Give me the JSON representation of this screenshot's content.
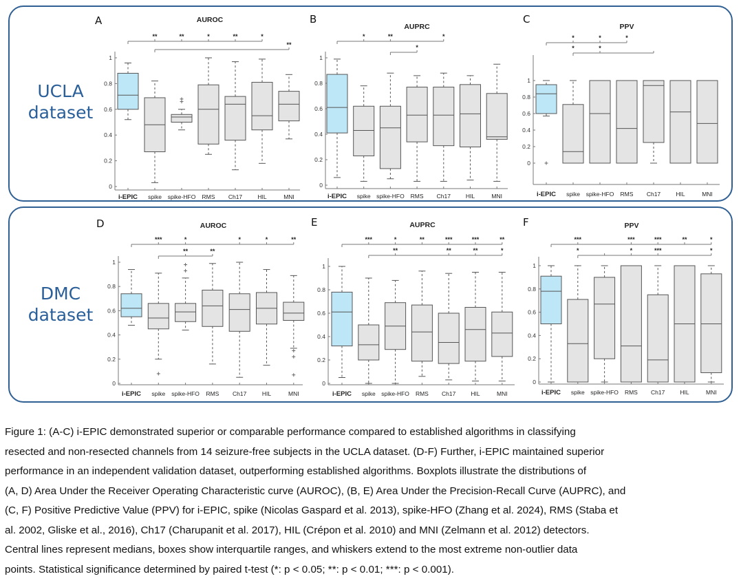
{
  "datasets": {
    "top_label": "UCLA dataset",
    "top_label_lines": [
      "UCLA",
      "dataset"
    ],
    "bottom_label": "DMC dataset",
    "bottom_label_lines": [
      "DMC",
      "dataset"
    ]
  },
  "colors": {
    "frame": "#2f5f93",
    "dataset_label": "#2a5f99",
    "iepic_box": "#bde6f7",
    "other_box": "#e4e4e4",
    "box_edge": "#555555"
  },
  "chart_data": [
    {
      "panel": "A",
      "type": "box",
      "dataset": "UCLA",
      "title": "AUROC",
      "categories": [
        "i-EPIC",
        "spike",
        "spike-HFO",
        "RMS",
        "Ch17",
        "HIL",
        "MNI"
      ],
      "yticks": [
        0,
        0.2,
        0.4,
        0.6,
        0.8,
        1
      ],
      "ytick_labels": [
        "0",
        "0.2",
        "0.4",
        "0.6",
        "0.8",
        "1"
      ],
      "ylim": [
        -0.02,
        1.08
      ],
      "boxes": [
        {
          "q1": 0.6,
          "median": 0.71,
          "q3": 0.88,
          "wlo": 0.52,
          "whi": 0.96,
          "outliers": []
        },
        {
          "q1": 0.27,
          "median": 0.48,
          "q3": 0.69,
          "wlo": 0.03,
          "whi": 0.82,
          "outliers": []
        },
        {
          "q1": 0.5,
          "median": 0.54,
          "q3": 0.56,
          "wlo": 0.44,
          "whi": 0.6,
          "outliers": [
            0.66,
            0.68
          ]
        },
        {
          "q1": 0.33,
          "median": 0.6,
          "q3": 0.79,
          "wlo": 0.25,
          "whi": 1.0,
          "outliers": []
        },
        {
          "q1": 0.36,
          "median": 0.64,
          "q3": 0.7,
          "wlo": 0.13,
          "whi": 0.97,
          "outliers": []
        },
        {
          "q1": 0.44,
          "median": 0.55,
          "q3": 0.81,
          "wlo": 0.18,
          "whi": 0.99,
          "outliers": []
        },
        {
          "q1": 0.51,
          "median": 0.64,
          "q3": 0.74,
          "wlo": 0.37,
          "whi": 0.87,
          "outliers": []
        }
      ],
      "significance": [
        {
          "from": "i-EPIC",
          "marks": [
            {
              "to": "spike",
              "stars": "**"
            },
            {
              "to": "spike-HFO",
              "stars": "**"
            },
            {
              "to": "RMS",
              "stars": "*"
            },
            {
              "to": "Ch17",
              "stars": "**"
            },
            {
              "to": "HIL",
              "stars": "*"
            }
          ]
        },
        {
          "from": "spike",
          "marks": [
            {
              "to": "MNI",
              "stars": "**"
            }
          ]
        }
      ]
    },
    {
      "panel": "B",
      "type": "box",
      "dataset": "UCLA",
      "title": "AUPRC",
      "categories": [
        "i-EPIC",
        "spike",
        "spike-HFO",
        "RMS",
        "Ch17",
        "HIL",
        "MNI"
      ],
      "yticks": [
        0,
        0.2,
        0.4,
        0.6,
        0.8,
        1
      ],
      "ytick_labels": [
        "0",
        "0.2",
        "0.4",
        "0.6",
        "0.8",
        "1"
      ],
      "ylim": [
        -0.02,
        1.08
      ],
      "boxes": [
        {
          "q1": 0.41,
          "median": 0.61,
          "q3": 0.87,
          "wlo": 0.06,
          "whi": 0.99,
          "outliers": []
        },
        {
          "q1": 0.23,
          "median": 0.43,
          "q3": 0.62,
          "wlo": 0.03,
          "whi": 0.78,
          "outliers": []
        },
        {
          "q1": 0.13,
          "median": 0.45,
          "q3": 0.62,
          "wlo": 0.05,
          "whi": 0.88,
          "outliers": []
        },
        {
          "q1": 0.34,
          "median": 0.55,
          "q3": 0.77,
          "wlo": 0.03,
          "whi": 0.86,
          "outliers": []
        },
        {
          "q1": 0.31,
          "median": 0.55,
          "q3": 0.77,
          "wlo": 0.03,
          "whi": 0.88,
          "outliers": []
        },
        {
          "q1": 0.3,
          "median": 0.56,
          "q3": 0.79,
          "wlo": 0.04,
          "whi": 0.86,
          "outliers": []
        },
        {
          "q1": 0.36,
          "median": 0.38,
          "q3": 0.72,
          "wlo": 0.03,
          "whi": 0.95,
          "outliers": []
        }
      ],
      "significance": [
        {
          "from": "i-EPIC",
          "marks": [
            {
              "to": "spike",
              "stars": "*"
            },
            {
              "to": "spike-HFO",
              "stars": "**"
            },
            {
              "to": "Ch17",
              "stars": "*"
            }
          ]
        },
        {
          "from": "spike-HFO",
          "marks": [
            {
              "to": "RMS",
              "stars": "*"
            }
          ]
        }
      ]
    },
    {
      "panel": "C",
      "type": "box",
      "dataset": "UCLA",
      "title": "PPV",
      "categories": [
        "i-EPIC",
        "spike",
        "spike-HFO",
        "RMS",
        "Ch17",
        "HIL",
        "MNI"
      ],
      "yticks": [
        0,
        0.2,
        0.4,
        0.6,
        0.8,
        1
      ],
      "ytick_labels": [
        "0",
        "0.2",
        "0.4",
        "0.6",
        "0.8",
        "1"
      ],
      "ylim": [
        -0.2,
        1.35
      ],
      "boxes": [
        {
          "q1": 0.6,
          "median": 0.84,
          "q3": 0.95,
          "wlo": 0.57,
          "whi": 1.0,
          "outliers": [
            0.0
          ]
        },
        {
          "q1": 0.0,
          "median": 0.14,
          "q3": 0.71,
          "wlo": 0.0,
          "whi": 1.0,
          "outliers": []
        },
        {
          "q1": 0.0,
          "median": 0.6,
          "q3": 1.0,
          "wlo": 0.0,
          "whi": 1.0,
          "outliers": []
        },
        {
          "q1": 0.0,
          "median": 0.42,
          "q3": 1.0,
          "wlo": 0.0,
          "whi": 1.0,
          "outliers": []
        },
        {
          "q1": 0.25,
          "median": 0.94,
          "q3": 1.0,
          "wlo": 0.0,
          "whi": 1.0,
          "outliers": []
        },
        {
          "q1": 0.0,
          "median": 0.62,
          "q3": 1.0,
          "wlo": 0.0,
          "whi": 1.0,
          "outliers": []
        },
        {
          "q1": 0.0,
          "median": 0.48,
          "q3": 1.0,
          "wlo": 0.0,
          "whi": 1.0,
          "outliers": []
        }
      ],
      "significance": [
        {
          "from": "i-EPIC",
          "marks": [
            {
              "to": "spike",
              "stars": "*"
            },
            {
              "to": "spike-HFO",
              "stars": "*"
            },
            {
              "to": "RMS",
              "stars": "*"
            }
          ]
        },
        {
          "from": "spike",
          "marks": [
            {
              "to": "spike",
              "stars": "*"
            },
            {
              "to": "spike-HFO",
              "stars": "*"
            },
            {
              "to": "Ch17",
              "stars": ""
            }
          ]
        }
      ]
    },
    {
      "panel": "D",
      "type": "box",
      "dataset": "DMC",
      "title": "AUROC",
      "categories": [
        "i-EPIC",
        "spike",
        "spike-HFO",
        "RMS",
        "Ch17",
        "HIL",
        "MNI"
      ],
      "yticks": [
        0,
        0.2,
        0.4,
        0.6,
        0.8,
        1
      ],
      "ytick_labels": [
        "0",
        "0.2",
        "0.4",
        "0.6",
        "0.8",
        "1"
      ],
      "ylim": [
        -0.02,
        1.05
      ],
      "boxes": [
        {
          "q1": 0.55,
          "median": 0.62,
          "q3": 0.74,
          "wlo": 0.48,
          "whi": 0.94,
          "outliers": []
        },
        {
          "q1": 0.45,
          "median": 0.54,
          "q3": 0.66,
          "wlo": 0.2,
          "whi": 0.91,
          "outliers": [
            0.08
          ]
        },
        {
          "q1": 0.51,
          "median": 0.59,
          "q3": 0.66,
          "wlo": 0.44,
          "whi": 0.87,
          "outliers": [
            0.93,
            0.98
          ]
        },
        {
          "q1": 0.47,
          "median": 0.64,
          "q3": 0.77,
          "wlo": 0.16,
          "whi": 0.99,
          "outliers": []
        },
        {
          "q1": 0.43,
          "median": 0.61,
          "q3": 0.74,
          "wlo": 0.05,
          "whi": 1.0,
          "outliers": []
        },
        {
          "q1": 0.49,
          "median": 0.62,
          "q3": 0.75,
          "wlo": 0.15,
          "whi": 0.94,
          "outliers": []
        },
        {
          "q1": 0.52,
          "median": 0.58,
          "q3": 0.67,
          "wlo": 0.29,
          "whi": 0.89,
          "outliers": [
            0.07,
            0.22,
            0.27
          ]
        }
      ],
      "significance": [
        {
          "from": "i-EPIC",
          "marks": [
            {
              "to": "spike",
              "stars": "***"
            },
            {
              "to": "spike-HFO",
              "stars": "*"
            },
            {
              "to": "Ch17",
              "stars": "*"
            },
            {
              "to": "HIL",
              "stars": "*"
            },
            {
              "to": "MNI",
              "stars": "**"
            }
          ]
        },
        {
          "from": "spike",
          "marks": [
            {
              "to": "spike-HFO",
              "stars": "**"
            },
            {
              "to": "RMS",
              "stars": "**"
            }
          ]
        }
      ]
    },
    {
      "panel": "E",
      "type": "box",
      "dataset": "DMC",
      "title": "AUPRC",
      "categories": [
        "i-EPIC",
        "spike",
        "spike-HFO",
        "RMS",
        "Ch17",
        "HIL",
        "MNI"
      ],
      "yticks": [
        0,
        0.2,
        0.4,
        0.6,
        0.8,
        1
      ],
      "ytick_labels": [
        "0",
        "0.2",
        "0.4",
        "0.6",
        "0.8",
        "1"
      ],
      "ylim": [
        -0.02,
        1.08
      ],
      "boxes": [
        {
          "q1": 0.32,
          "median": 0.61,
          "q3": 0.78,
          "wlo": 0.05,
          "whi": 1.0,
          "outliers": []
        },
        {
          "q1": 0.2,
          "median": 0.33,
          "q3": 0.5,
          "wlo": 0.0,
          "whi": 0.9,
          "outliers": []
        },
        {
          "q1": 0.29,
          "median": 0.49,
          "q3": 0.69,
          "wlo": 0.0,
          "whi": 0.88,
          "outliers": []
        },
        {
          "q1": 0.19,
          "median": 0.44,
          "q3": 0.67,
          "wlo": 0.06,
          "whi": 0.96,
          "outliers": []
        },
        {
          "q1": 0.17,
          "median": 0.35,
          "q3": 0.6,
          "wlo": 0.03,
          "whi": 0.94,
          "outliers": []
        },
        {
          "q1": 0.19,
          "median": 0.46,
          "q3": 0.65,
          "wlo": 0.02,
          "whi": 0.95,
          "outliers": []
        },
        {
          "q1": 0.23,
          "median": 0.43,
          "q3": 0.61,
          "wlo": 0.02,
          "whi": 0.95,
          "outliers": []
        }
      ],
      "significance": [
        {
          "from": "i-EPIC",
          "marks": [
            {
              "to": "spike",
              "stars": "***"
            },
            {
              "to": "spike-HFO",
              "stars": "*"
            },
            {
              "to": "RMS",
              "stars": "**"
            },
            {
              "to": "Ch17",
              "stars": "***"
            },
            {
              "to": "HIL",
              "stars": "***"
            },
            {
              "to": "MNI",
              "stars": "**"
            }
          ]
        },
        {
          "from": "spike",
          "marks": [
            {
              "to": "spike-HFO",
              "stars": "**"
            },
            {
              "to": "Ch17",
              "stars": "**"
            },
            {
              "to": "HIL",
              "stars": "**"
            },
            {
              "to": "MNI",
              "stars": "*"
            }
          ]
        }
      ]
    },
    {
      "panel": "F",
      "type": "box",
      "dataset": "DMC",
      "title": "PPV",
      "categories": [
        "i-EPIC",
        "spike",
        "spike-HFO",
        "RMS",
        "Ch17",
        "HIL",
        "MNI"
      ],
      "yticks": [
        0,
        0.2,
        0.4,
        0.6,
        0.8,
        1
      ],
      "ytick_labels": [
        "0",
        "0.2",
        "0.4",
        "0.6",
        "0.8",
        "1"
      ],
      "ylim": [
        -0.02,
        1.08
      ],
      "boxes": [
        {
          "q1": 0.5,
          "median": 0.78,
          "q3": 0.91,
          "wlo": 0.0,
          "whi": 1.0,
          "outliers": []
        },
        {
          "q1": 0.0,
          "median": 0.33,
          "q3": 0.71,
          "wlo": 0.0,
          "whi": 1.0,
          "outliers": []
        },
        {
          "q1": 0.2,
          "median": 0.67,
          "q3": 0.9,
          "wlo": 0.0,
          "whi": 1.0,
          "outliers": []
        },
        {
          "q1": 0.0,
          "median": 0.31,
          "q3": 1.0,
          "wlo": 0.0,
          "whi": 1.0,
          "outliers": []
        },
        {
          "q1": 0.0,
          "median": 0.19,
          "q3": 0.75,
          "wlo": 0.0,
          "whi": 1.0,
          "outliers": []
        },
        {
          "q1": 0.0,
          "median": 0.5,
          "q3": 1.0,
          "wlo": 0.0,
          "whi": 1.0,
          "outliers": []
        },
        {
          "q1": 0.08,
          "median": 0.5,
          "q3": 0.93,
          "wlo": 0.0,
          "whi": 1.0,
          "outliers": []
        }
      ],
      "significance": [
        {
          "from": "i-EPIC",
          "marks": [
            {
              "to": "spike",
              "stars": "***"
            },
            {
              "to": "RMS",
              "stars": "***"
            },
            {
              "to": "Ch17",
              "stars": "***"
            },
            {
              "to": "HIL",
              "stars": "**"
            },
            {
              "to": "MNI",
              "stars": "*"
            }
          ]
        },
        {
          "from": "spike",
          "marks": [
            {
              "to": "spike",
              "stars": "*"
            },
            {
              "to": "spike-HFO",
              "stars": ""
            },
            {
              "to": "RMS",
              "stars": "*"
            },
            {
              "to": "Ch17",
              "stars": "***"
            },
            {
              "to": "MNI",
              "stars": "*"
            }
          ]
        }
      ]
    }
  ],
  "caption": {
    "lines": [
      "Figure 1: (A-C) i-EPIC demonstrated superior or comparable performance compared to established algorithms in classifying",
      "resected and non-resected channels from 14 seizure-free subjects in the UCLA dataset. (D-F) Further, i-EPIC maintained superior",
      "performance in an independent validation dataset, outperforming established algorithms. Boxplots illustrate the distributions of",
      "(A, D) Area Under the Receiver Operating Characteristic curve (AUROC), (B, E) Area Under the Precision-Recall Curve (AUPRC), and",
      "(C, F) Positive Predictive Value (PPV) for i-EPIC, spike (Nicolas Gaspard et al. 2013), spike-HFO (Zhang et al. 2024), RMS (Staba et",
      "al. 2002, Gliske et al., 2016), Ch17 (Charupanit et al. 2017), HIL (Crépon et al. 2010) and MNI (Zelmann et al. 2012) detectors.",
      "Central lines represent medians, boxes show interquartile ranges, and whiskers extend to the most extreme non-outlier data",
      "points. Statistical significance determined by paired t-test (*: p < 0.05; **: p < 0.01; ***: p < 0.001)."
    ]
  }
}
